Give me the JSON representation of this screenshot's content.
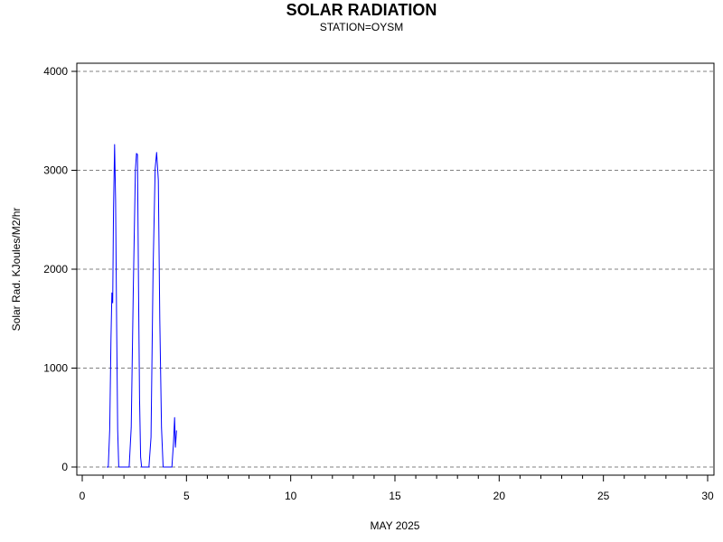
{
  "chart_data": {
    "type": "line",
    "title": "SOLAR RADIATION",
    "subtitle": "STATION=OYSM",
    "xlabel": "MAY 2025",
    "ylabel": "Solar Rad. KJoules/M2/hr",
    "xlim": [
      0,
      30
    ],
    "ylim": [
      0,
      4000
    ],
    "xticks": [
      0,
      5,
      10,
      15,
      20,
      25,
      30
    ],
    "yticks": [
      0,
      1000,
      2000,
      3000,
      4000
    ],
    "grid": "horizontal-dashed",
    "series": [
      {
        "color": "#0000ff",
        "points": [
          [
            1.17,
            0
          ],
          [
            1.25,
            0
          ],
          [
            1.32,
            380
          ],
          [
            1.38,
            1300
          ],
          [
            1.42,
            1760
          ],
          [
            1.46,
            1660
          ],
          [
            1.5,
            2600
          ],
          [
            1.55,
            3260
          ],
          [
            1.6,
            2700
          ],
          [
            1.65,
            1400
          ],
          [
            1.7,
            380
          ],
          [
            1.75,
            0
          ],
          [
            2.05,
            0
          ],
          [
            2.25,
            0
          ],
          [
            2.35,
            400
          ],
          [
            2.45,
            1800
          ],
          [
            2.55,
            3000
          ],
          [
            2.6,
            3170
          ],
          [
            2.65,
            3160
          ],
          [
            2.7,
            1800
          ],
          [
            2.75,
            700
          ],
          [
            2.8,
            100
          ],
          [
            2.85,
            0
          ],
          [
            3.2,
            0
          ],
          [
            3.3,
            300
          ],
          [
            3.4,
            2000
          ],
          [
            3.5,
            3020
          ],
          [
            3.57,
            3180
          ],
          [
            3.65,
            2900
          ],
          [
            3.72,
            1500
          ],
          [
            3.8,
            400
          ],
          [
            3.88,
            0
          ],
          [
            4.3,
            0
          ],
          [
            4.38,
            250
          ],
          [
            4.43,
            500
          ],
          [
            4.47,
            200
          ],
          [
            4.52,
            370
          ]
        ]
      }
    ]
  }
}
